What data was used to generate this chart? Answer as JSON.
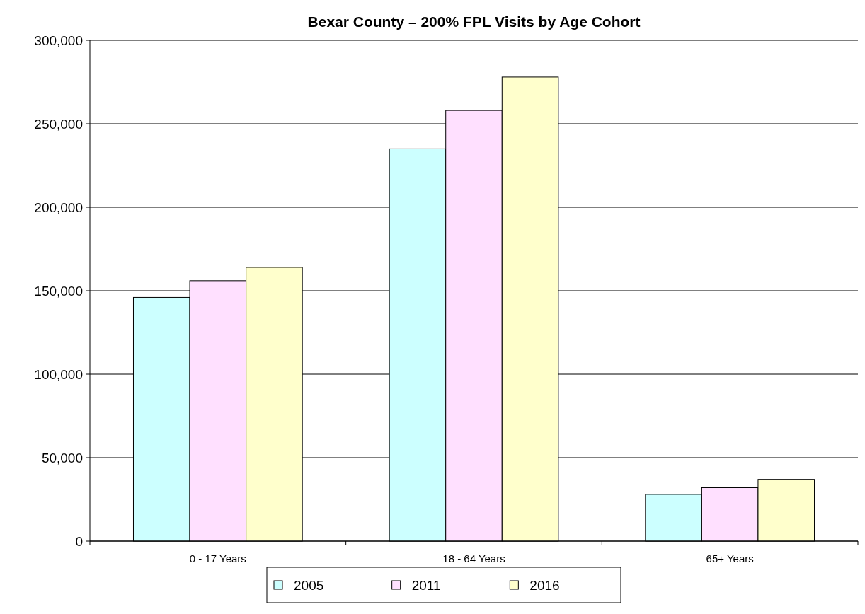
{
  "chart_data": {
    "type": "bar",
    "title": "Bexar County – 200% FPL Visits by Age Cohort",
    "categories": [
      "0 - 17 Years",
      "18 - 64 Years",
      "65+ Years"
    ],
    "series": [
      {
        "name": "2005",
        "color": "#ccffff",
        "values": [
          146000,
          235000,
          28000
        ]
      },
      {
        "name": "2011",
        "color": "#ffe0ff",
        "values": [
          156000,
          258000,
          32000
        ]
      },
      {
        "name": "2016",
        "color": "#ffffcc",
        "values": [
          164000,
          278000,
          37000
        ]
      }
    ],
    "ylim": [
      0,
      300000
    ],
    "yticks": [
      {
        "value": 0,
        "label": "0"
      },
      {
        "value": 50000,
        "label": "50,000"
      },
      {
        "value": 100000,
        "label": "100,000"
      },
      {
        "value": 150000,
        "label": "150,000"
      },
      {
        "value": 200000,
        "label": "200,000"
      },
      {
        "value": 250000,
        "label": "250,000"
      },
      {
        "value": 300000,
        "label": "300,000"
      }
    ],
    "grid": "y",
    "legend": "bottom"
  }
}
